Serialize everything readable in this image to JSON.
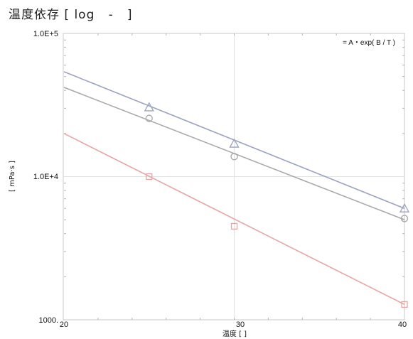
{
  "title": "温度依存 [ log   -   ]",
  "chart_data": {
    "type": "scatter",
    "title": "温度依存 [ log   -   ]",
    "xlabel": "温度 [     ]",
    "ylabel": "[ mPa·s ]",
    "xlim": [
      20,
      40
    ],
    "ylim": [
      1000,
      100000
    ],
    "y_scale": "log",
    "grid": true,
    "x_ticks": [
      "20",
      "30",
      "40"
    ],
    "y_ticks": [
      "1000.",
      "1.0E+4",
      "1.0E+5"
    ],
    "annotation": "= A・exp( B / T )",
    "series": [
      {
        "marker": "triangle",
        "color": "#9aa3bf",
        "points": [
          [
            25,
            30500
          ],
          [
            30,
            17000
          ],
          [
            40,
            6000
          ]
        ],
        "fit": [
          [
            20,
            54000
          ],
          [
            40,
            6000
          ]
        ]
      },
      {
        "marker": "circle",
        "color": "#a8a8a8",
        "points": [
          [
            25,
            25500
          ],
          [
            30,
            13800
          ],
          [
            40,
            5100
          ]
        ],
        "fit": [
          [
            20,
            42000
          ],
          [
            40,
            5000
          ]
        ]
      },
      {
        "marker": "square",
        "color": "#e6a6a6",
        "points": [
          [
            25,
            10000
          ],
          [
            30,
            4500
          ],
          [
            40,
            1280
          ]
        ],
        "fit": [
          [
            20,
            20000
          ],
          [
            40,
            1280
          ]
        ]
      }
    ]
  }
}
